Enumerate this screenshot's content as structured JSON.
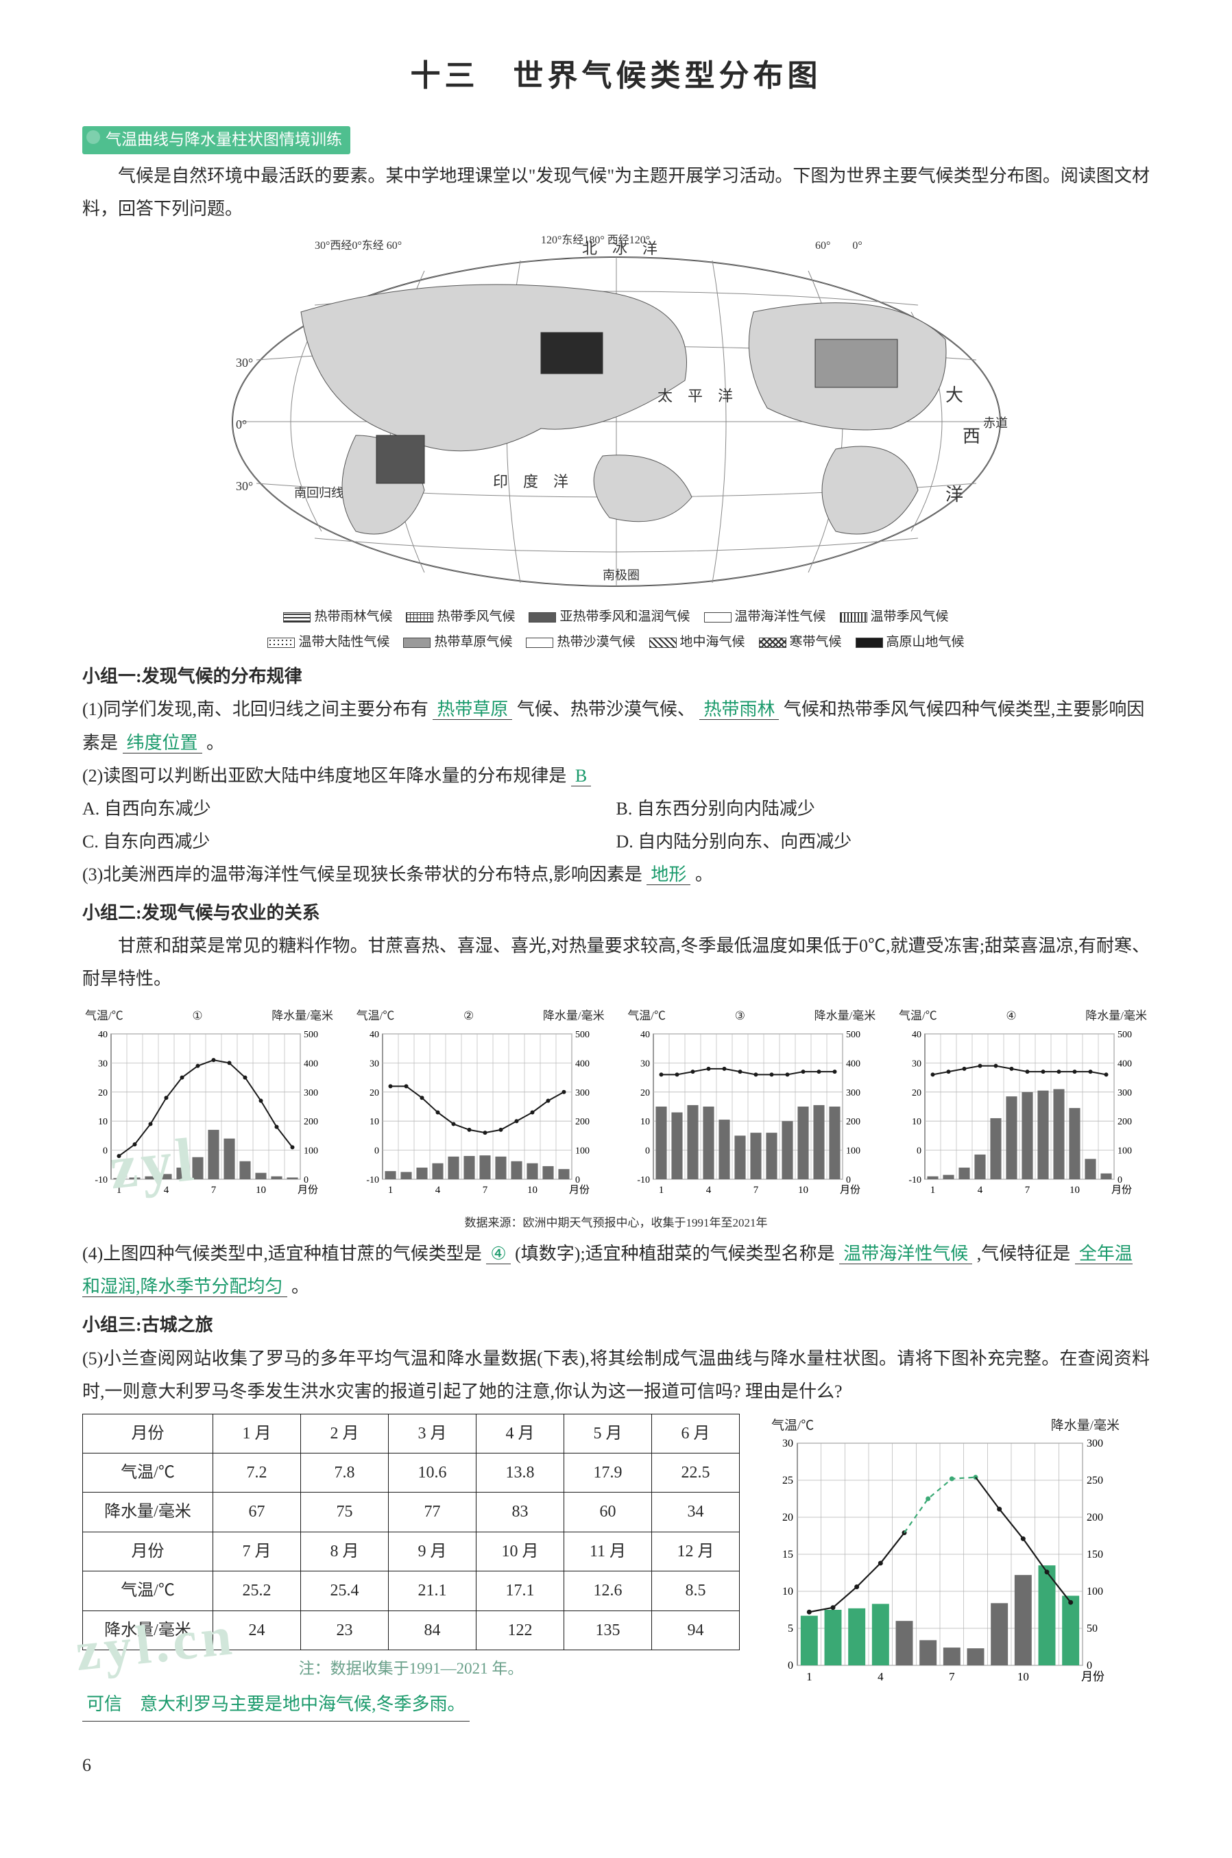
{
  "page_title": "十三　世界气候类型分布图",
  "badge": "气温曲线与降水量柱状图情境训练",
  "intro": "气候是自然环境中最活跃的要素。某中学地理课堂以\"发现气候\"为主题开展学习活动。下图为世界主要气候类型分布图。阅读图文材料，回答下列问题。",
  "map": {
    "lon_labels": [
      "30°西经0°东经 60°",
      "120°东经180°",
      "西经120°",
      "60°",
      "0°"
    ],
    "lat_labels": [
      "北冰洋",
      "30°",
      "0°",
      "南回归线",
      "30°",
      "洋"
    ],
    "body_labels": [
      "大",
      "西",
      "太　平　洋",
      "印　度　洋",
      "大　西　洋",
      "赤道",
      "南极圈"
    ]
  },
  "legend": {
    "row1": [
      {
        "name": "热带雨林气候",
        "pattern": "hstripe"
      },
      {
        "name": "热带季风气候",
        "pattern": "grid"
      },
      {
        "name": "亚热带季风和温润气候",
        "pattern": "solid"
      },
      {
        "name": "温带海洋性气候",
        "pattern": "blank"
      },
      {
        "name": "温带季风气候",
        "pattern": "vstripe"
      }
    ],
    "row2": [
      {
        "name": "温带大陆性气候",
        "pattern": "dots"
      },
      {
        "name": "热带草原气候",
        "pattern": "gray"
      },
      {
        "name": "热带沙漠气候",
        "pattern": "blank"
      },
      {
        "name": "地中海气候",
        "pattern": "diag"
      },
      {
        "name": "寒带气候",
        "pattern": "cross"
      },
      {
        "name": "高原山地气候",
        "pattern": "black"
      }
    ]
  },
  "g1": {
    "heading": "小组一:发现气候的分布规律",
    "q1": {
      "pre": "(1)同学们发现,南、北回归线之间主要分布有",
      "ans1": "热带草原",
      "mid1": "气候、热带沙漠气候、",
      "ans2": "热带雨林",
      "mid2": "气候和热带季风气候四种气候类型,主要影响因素是",
      "ans3": "纬度位置",
      "tail": "。"
    },
    "q2": {
      "pre": "(2)读图可以判断出亚欧大陆中纬度地区年降水量的分布规律是",
      "ans": "B",
      "options": {
        "A": "A. 自西向东减少",
        "B": "B. 自东西分别向内陆减少",
        "C": "C. 自东向西减少",
        "D": "D. 自内陆分别向东、向西减少"
      }
    },
    "q3": {
      "pre": "(3)北美洲西岸的温带海洋性气候呈现狭长条带状的分布特点,影响因素是",
      "ans": "地形",
      "tail": "。"
    }
  },
  "g2": {
    "heading": "小组二:发现气候与农业的关系",
    "para": "甘蔗和甜菜是常见的糖料作物。甘蔗喜热、喜湿、喜光,对热量要求较高,冬季最低温度如果低于0℃,就遭受冻害;甜菜喜温凉,有耐寒、耐旱特性。",
    "chart_labels": {
      "temp": "气温/℃",
      "rain": "降水量/毫米",
      "xticks": [
        "1",
        "4",
        "7",
        "10",
        "月份"
      ]
    },
    "charts": [
      {
        "id": "①",
        "type": "climograph",
        "temp": [
          -2,
          2,
          9,
          18,
          25,
          29,
          31,
          30,
          25,
          17,
          8,
          1
        ],
        "rain": [
          4,
          6,
          10,
          18,
          40,
          76,
          170,
          140,
          62,
          22,
          10,
          6
        ],
        "ylim_temp": [
          -10,
          40
        ],
        "ytick_temp": 10,
        "ylim_rain": [
          0,
          500
        ],
        "ytick_rain": 100,
        "bar_color": "#6d6d6d",
        "line_color": "#1a1a1a",
        "bg": "#ffffff",
        "grid": "#b8b8b8"
      },
      {
        "id": "②",
        "type": "climograph",
        "temp": [
          22,
          22,
          18,
          13,
          9,
          7,
          6,
          7,
          10,
          13,
          17,
          20
        ],
        "rain": [
          28,
          25,
          40,
          55,
          78,
          80,
          82,
          78,
          62,
          55,
          45,
          35
        ],
        "ylim_temp": [
          -10,
          40
        ],
        "ytick_temp": 10,
        "ylim_rain": [
          0,
          500
        ],
        "ytick_rain": 100,
        "bar_color": "#6d6d6d",
        "line_color": "#1a1a1a",
        "bg": "#ffffff",
        "grid": "#b8b8b8"
      },
      {
        "id": "③",
        "type": "climograph",
        "temp": [
          26,
          26,
          27,
          28,
          28,
          27,
          26,
          26,
          26,
          27,
          27,
          27
        ],
        "rain": [
          250,
          230,
          255,
          250,
          205,
          150,
          160,
          160,
          200,
          250,
          255,
          250
        ],
        "ylim_temp": [
          -10,
          40
        ],
        "ytick_temp": 10,
        "ylim_rain": [
          0,
          500
        ],
        "ytick_rain": 100,
        "bar_color": "#6d6d6d",
        "line_color": "#1a1a1a",
        "bg": "#ffffff",
        "grid": "#b8b8b8"
      },
      {
        "id": "④",
        "type": "climograph",
        "temp": [
          26,
          27,
          28,
          29,
          29,
          28,
          27,
          27,
          27,
          27,
          27,
          26
        ],
        "rain": [
          10,
          15,
          40,
          85,
          210,
          285,
          300,
          305,
          310,
          245,
          70,
          20
        ],
        "ylim_temp": [
          -10,
          40
        ],
        "ytick_temp": 10,
        "ylim_rain": [
          0,
          500
        ],
        "ytick_rain": 100,
        "bar_color": "#6d6d6d",
        "line_color": "#1a1a1a",
        "bg": "#ffffff",
        "grid": "#b8b8b8"
      }
    ],
    "source": "数据来源：欧洲中期天气预报中心，收集于1991年至2021年",
    "q4": {
      "pre": "(4)上图四种气候类型中,适宜种植甘蔗的气候类型是",
      "ans1": "④",
      "mid": "(填数字);适宜种植甜菜的气候类型名称是",
      "ans2": "温带海洋性气候",
      "mid2": ",气候特征是",
      "ans3": "全年温和湿润,降水季节分配均匀",
      "tail": "。"
    }
  },
  "g3": {
    "heading": "小组三:古城之旅",
    "q5_text": "(5)小兰查阅网站收集了罗马的多年平均气温和降水量数据(下表),将其绘制成气温曲线与降水量柱状图。请将下图补充完整。在查阅资料时,一则意大利罗马冬季发生洪水灾害的报道引起了她的注意,你认为这一报道可信吗? 理由是什么?",
    "table": {
      "row_headers": [
        "月份",
        "气温/℃",
        "降水量/毫米",
        "月份",
        "气温/℃",
        "降水量/毫米"
      ],
      "cols1": [
        "1 月",
        "2 月",
        "3 月",
        "4 月",
        "5 月",
        "6 月"
      ],
      "temp1": [
        "7.2",
        "7.8",
        "10.6",
        "13.8",
        "17.9",
        "22.5"
      ],
      "rain1": [
        "67",
        "75",
        "77",
        "83",
        "60",
        "34"
      ],
      "cols2": [
        "7 月",
        "8 月",
        "9 月",
        "10 月",
        "11 月",
        "12 月"
      ],
      "temp2": [
        "25.2",
        "25.4",
        "21.1",
        "17.1",
        "12.6",
        "8.5"
      ],
      "rain2": [
        "24",
        "23",
        "84",
        "122",
        "135",
        "94"
      ]
    },
    "table_note": "注：数据收集于1991—2021 年。",
    "chart5": {
      "type": "climograph",
      "temp_label": "气温/℃",
      "rain_label": "降水量/毫米",
      "xticks": [
        "1",
        "4",
        "7",
        "10",
        "月份"
      ],
      "ylim_temp": [
        0,
        30
      ],
      "ytick_temp": 5,
      "ylim_rain": [
        0,
        300
      ],
      "ytick_rain": 50,
      "temp": [
        7.2,
        7.8,
        10.6,
        13.8,
        17.9,
        22.5,
        25.2,
        25.4,
        21.1,
        17.1,
        12.6,
        8.5
      ],
      "rain": [
        67,
        75,
        77,
        83,
        60,
        34,
        24,
        23,
        84,
        122,
        135,
        94
      ],
      "drawn_rain_idx": [
        0,
        1,
        2,
        3,
        10,
        11
      ],
      "drawn_temp_idx": [
        0,
        1,
        2,
        3,
        4
      ],
      "missing_temp_idx": [
        5,
        6,
        7
      ],
      "bar_color_drawn": "#3aa974",
      "bar_color_missing": "#6d6d6d",
      "line_color_drawn": "#1a1a1a",
      "line_color_missing": "#3aa974",
      "bg": "#ffffff",
      "grid": "#b0b0b0"
    },
    "answer": "可信　意大利罗马主要是地中海气候,冬季多雨。"
  },
  "watermarks": [
    "zyl",
    "zyl.cn"
  ],
  "page_number": "6"
}
